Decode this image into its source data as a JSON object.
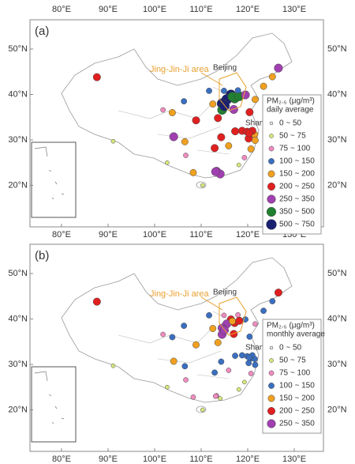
{
  "panels": [
    {
      "label": "(a)",
      "legend_title": "PM₂.₅ (μg/m³)",
      "legend_subtitle": "daily average",
      "region_label": "Jing-Jin-Ji area",
      "city_labels": [
        "Beijing",
        "Shanghai"
      ],
      "xticks": [
        {
          "value": 80,
          "label": "80°E"
        },
        {
          "value": 90,
          "label": "90°E"
        },
        {
          "value": 100,
          "label": "100°E"
        },
        {
          "value": 110,
          "label": "110°E"
        },
        {
          "value": 120,
          "label": "120°E"
        },
        {
          "value": 130,
          "label": "130°E"
        }
      ],
      "yticks": [
        {
          "value": 50,
          "label": "50°N"
        },
        {
          "value": 40,
          "label": "40°N"
        },
        {
          "value": 30,
          "label": "30°N"
        },
        {
          "value": 20,
          "label": "20°N"
        }
      ],
      "levels": [
        {
          "label": "0 ~ 50",
          "color": "#e8e8e8"
        },
        {
          "label": "50 ~ 75",
          "color": "#d9e87a"
        },
        {
          "label": "75 ~ 100",
          "color": "#f08cc0"
        },
        {
          "label": "100 ~ 150",
          "color": "#3a6fc0"
        },
        {
          "label": "150 ~ 200",
          "color": "#f0a020"
        },
        {
          "label": "200 ~ 250",
          "color": "#e02020"
        },
        {
          "label": "250 ~ 350",
          "color": "#a040b0"
        },
        {
          "label": "350 ~ 500",
          "color": "#208030"
        },
        {
          "label": "500 ~ 750",
          "color": "#1a2070"
        }
      ],
      "stations": [
        [
          116.4,
          39.9,
          8
        ],
        [
          117.2,
          39.1,
          7
        ],
        [
          115.5,
          38.9,
          8
        ],
        [
          114.5,
          38,
          8
        ],
        [
          116.7,
          39.5,
          7
        ],
        [
          118.2,
          39.6,
          7
        ],
        [
          114.5,
          36.6,
          7
        ],
        [
          115,
          37.5,
          8
        ],
        [
          119.5,
          39.9,
          6
        ],
        [
          114.9,
          40.8,
          3
        ],
        [
          117.9,
          40.9,
          3
        ],
        [
          112.5,
          37.9,
          4
        ],
        [
          113.6,
          34.8,
          5
        ],
        [
          117,
          36.7,
          6
        ],
        [
          120.4,
          36.1,
          5
        ],
        [
          118.8,
          32,
          5
        ],
        [
          120.6,
          31.3,
          5
        ],
        [
          121.5,
          31.2,
          4
        ],
        [
          120.2,
          30.3,
          5
        ],
        [
          119.9,
          31.8,
          5
        ],
        [
          121,
          32,
          5
        ],
        [
          120.3,
          31.5,
          5
        ],
        [
          121.6,
          29.9,
          4
        ],
        [
          120.7,
          28,
          4
        ],
        [
          119.3,
          26.1,
          2
        ],
        [
          118.1,
          24.5,
          1
        ],
        [
          113.3,
          23.1,
          6
        ],
        [
          114.1,
          22.5,
          6
        ],
        [
          113.1,
          23,
          6
        ],
        [
          110.3,
          20,
          1
        ],
        [
          108.3,
          22.8,
          4
        ],
        [
          106.7,
          26.6,
          2
        ],
        [
          102.7,
          25,
          1
        ],
        [
          104.1,
          30.7,
          6
        ],
        [
          106.5,
          29.6,
          4
        ],
        [
          108.9,
          34.3,
          5
        ],
        [
          103.8,
          36,
          4
        ],
        [
          101.8,
          36.6,
          2
        ],
        [
          106.3,
          38.5,
          3
        ],
        [
          111.7,
          40.8,
          3
        ],
        [
          87.6,
          43.8,
          5
        ],
        [
          123.4,
          41.8,
          4
        ],
        [
          125.3,
          43.9,
          4
        ],
        [
          126.6,
          45.8,
          6
        ],
        [
          121.6,
          38.9,
          4
        ],
        [
          112.9,
          28.2,
          5
        ],
        [
          114.3,
          30.6,
          5
        ],
        [
          115.9,
          28.7,
          4
        ],
        [
          117.3,
          31.9,
          5
        ],
        [
          91.1,
          29.7,
          1
        ]
      ]
    },
    {
      "label": "(b)",
      "legend_title": "PM₂.₅ (μg/m³)",
      "legend_subtitle": "monthly average",
      "region_label": "Jing-Jin-Ji area",
      "city_labels": [
        "Beijing",
        "Shanghai"
      ],
      "xticks": [
        {
          "value": 80,
          "label": "80°E"
        },
        {
          "value": 90,
          "label": "90°E"
        },
        {
          "value": 100,
          "label": "100°E"
        },
        {
          "value": 110,
          "label": "110°E"
        },
        {
          "value": 120,
          "label": "120°E"
        },
        {
          "value": 130,
          "label": "130°E"
        }
      ],
      "yticks": [
        {
          "value": 50,
          "label": "50°N"
        },
        {
          "value": 40,
          "label": "40°N"
        },
        {
          "value": 30,
          "label": "30°N"
        },
        {
          "value": 20,
          "label": "20°N"
        }
      ],
      "levels": [
        {
          "label": "0 ~ 50",
          "color": "#e8e8e8"
        },
        {
          "label": "50 ~ 75",
          "color": "#d9e87a"
        },
        {
          "label": "75 ~ 100",
          "color": "#f08cc0"
        },
        {
          "label": "100 ~ 150",
          "color": "#3a6fc0"
        },
        {
          "label": "150 ~ 200",
          "color": "#f0a020"
        },
        {
          "label": "200 ~ 250",
          "color": "#e02020"
        },
        {
          "label": "250 ~ 350",
          "color": "#a040b0"
        }
      ],
      "stations": [
        [
          116.4,
          39.9,
          5
        ],
        [
          117.2,
          39.1,
          5
        ],
        [
          115.5,
          38.9,
          6
        ],
        [
          114.5,
          38,
          6
        ],
        [
          116.7,
          39.5,
          4
        ],
        [
          118.2,
          39.6,
          5
        ],
        [
          114.5,
          36.6,
          6
        ],
        [
          115,
          37.5,
          6
        ],
        [
          119.5,
          39.9,
          3
        ],
        [
          114.9,
          40.8,
          2
        ],
        [
          117.9,
          40.9,
          2
        ],
        [
          112.5,
          37.9,
          4
        ],
        [
          113.6,
          34.8,
          4
        ],
        [
          117,
          36.7,
          5
        ],
        [
          120.4,
          36.1,
          3
        ],
        [
          118.8,
          32,
          3
        ],
        [
          120.6,
          31.3,
          3
        ],
        [
          121.5,
          31.2,
          3
        ],
        [
          120.2,
          30.3,
          3
        ],
        [
          119.9,
          31.8,
          3
        ],
        [
          121,
          32,
          3
        ],
        [
          120.3,
          31.5,
          3
        ],
        [
          121.6,
          29.9,
          3
        ],
        [
          120.7,
          28,
          2
        ],
        [
          119.3,
          26.1,
          1
        ],
        [
          118.1,
          24.5,
          1
        ],
        [
          113.3,
          23.1,
          2
        ],
        [
          114.1,
          22.5,
          1
        ],
        [
          113.1,
          23,
          2
        ],
        [
          110.3,
          20,
          1
        ],
        [
          108.3,
          22.8,
          2
        ],
        [
          106.7,
          26.6,
          2
        ],
        [
          102.7,
          25,
          1
        ],
        [
          104.1,
          30.7,
          4
        ],
        [
          106.5,
          29.6,
          3
        ],
        [
          108.9,
          34.3,
          4
        ],
        [
          103.8,
          36,
          3
        ],
        [
          101.8,
          36.6,
          2
        ],
        [
          106.3,
          38.5,
          3
        ],
        [
          111.7,
          40.8,
          3
        ],
        [
          87.6,
          43.8,
          5
        ],
        [
          123.4,
          41.8,
          3
        ],
        [
          125.3,
          43.9,
          3
        ],
        [
          126.6,
          45.8,
          5
        ],
        [
          121.6,
          38.9,
          2
        ],
        [
          112.9,
          28.2,
          3
        ],
        [
          114.3,
          30.6,
          3
        ],
        [
          115.9,
          28.7,
          2
        ],
        [
          117.3,
          31.9,
          3
        ],
        [
          91.1,
          29.7,
          1
        ]
      ]
    }
  ]
}
